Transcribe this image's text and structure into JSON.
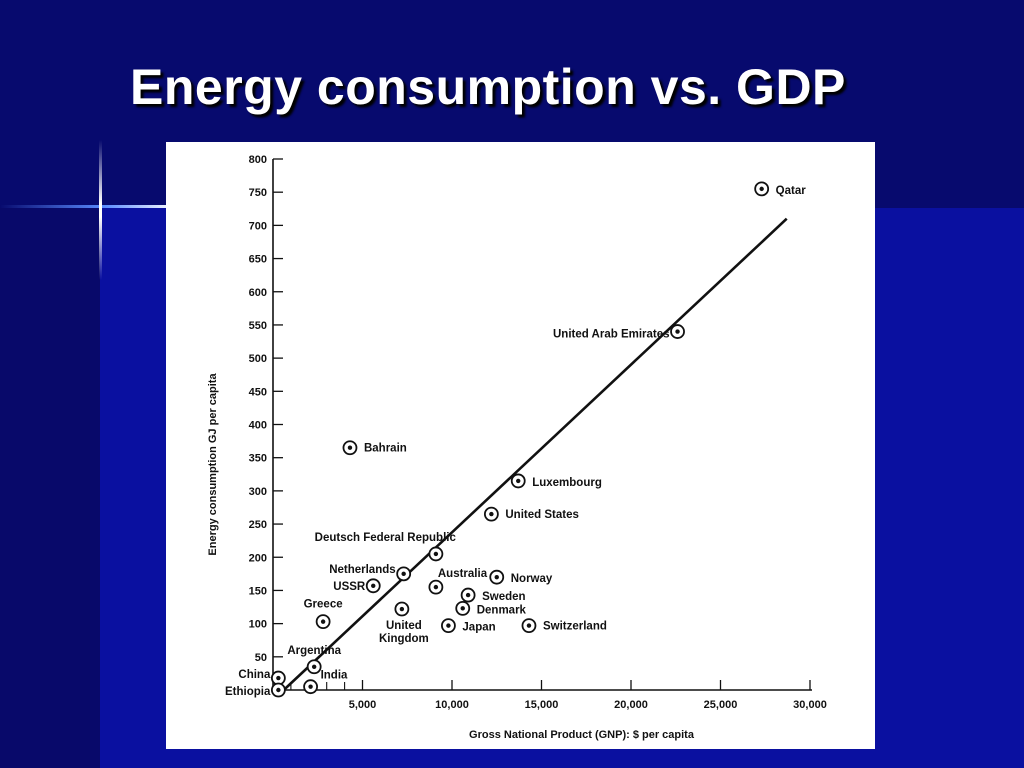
{
  "slide": {
    "title": "Energy consumption vs. GDP"
  },
  "colors": {
    "background": "#0b0f8a",
    "title": "#ffffff",
    "panel": "#ffffff",
    "ink": "#111111"
  },
  "chart_data": {
    "type": "scatter",
    "title": "",
    "xlabel": "Gross National Product (GNP): $ per capita",
    "ylabel": "Energy consumption GJ per capita",
    "xlim": [
      0,
      30000
    ],
    "ylim": [
      0,
      800
    ],
    "xticks": [
      5000,
      10000,
      15000,
      20000,
      25000,
      30000
    ],
    "xtick_labels": [
      "5,000",
      "10,000",
      "15,000",
      "20,000",
      "25,000",
      "30,000"
    ],
    "yticks": [
      50,
      100,
      150,
      200,
      250,
      300,
      350,
      400,
      450,
      500,
      550,
      600,
      650,
      700,
      750,
      800
    ],
    "grid": false,
    "legend": "none",
    "points": [
      {
        "label": "Qatar",
        "x": 27300,
        "y": 755
      },
      {
        "label": "United Arab Emirates",
        "x": 22600,
        "y": 540
      },
      {
        "label": "Bahrain",
        "x": 4300,
        "y": 365
      },
      {
        "label": "Luxembourg",
        "x": 13700,
        "y": 315
      },
      {
        "label": "United States",
        "x": 12200,
        "y": 265
      },
      {
        "label": "Deutsch Federal Republic",
        "x": 9100,
        "y": 205
      },
      {
        "label": "Netherlands",
        "x": 7300,
        "y": 175
      },
      {
        "label": "USSR",
        "x": 5600,
        "y": 157
      },
      {
        "label": "Australia",
        "x": 9100,
        "y": 155
      },
      {
        "label": "Norway",
        "x": 12500,
        "y": 170
      },
      {
        "label": "Sweden",
        "x": 10900,
        "y": 143
      },
      {
        "label": "Denmark",
        "x": 10600,
        "y": 123
      },
      {
        "label": "Greece",
        "x": 2800,
        "y": 103
      },
      {
        "label": "United Kingdom",
        "x": 7200,
        "y": 122
      },
      {
        "label": "Japan",
        "x": 9800,
        "y": 97
      },
      {
        "label": "Switzerland",
        "x": 14300,
        "y": 97
      },
      {
        "label": "Argentina",
        "x": 2300,
        "y": 35
      },
      {
        "label": "China",
        "x": 300,
        "y": 18
      },
      {
        "label": "India",
        "x": 2100,
        "y": 5
      },
      {
        "label": "Ethiopia",
        "x": 300,
        "y": 0
      }
    ],
    "trend_line": {
      "x": [
        600,
        28700
      ],
      "y": [
        0,
        710
      ]
    }
  }
}
